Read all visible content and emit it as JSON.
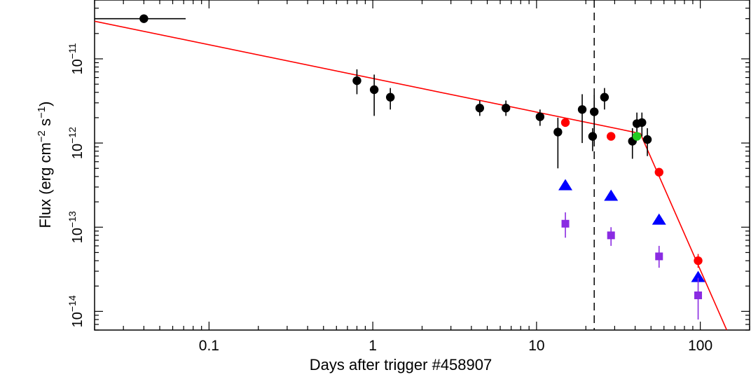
{
  "chart_data": {
    "type": "scatter",
    "xlabel": "Days after trigger #458907",
    "ylabel_parts": [
      "Flux (erg cm",
      "−2",
      " s",
      "−1",
      ")"
    ],
    "x_scale": "log",
    "y_scale": "log",
    "xlim": [
      0.02,
      200
    ],
    "ylim": [
      6e-15,
      5e-11
    ],
    "x_ticks": [
      {
        "value": 0.1,
        "label": "0.1"
      },
      {
        "value": 1,
        "label": "1"
      },
      {
        "value": 10,
        "label": "10"
      },
      {
        "value": 100,
        "label": "100"
      }
    ],
    "y_ticks": [
      {
        "value": 1e-14,
        "base": "10",
        "exp": "−14"
      },
      {
        "value": 1e-13,
        "base": "10",
        "exp": "−13"
      },
      {
        "value": 1e-12,
        "base": "10",
        "exp": "−12"
      },
      {
        "value": 1e-11,
        "base": "10",
        "exp": "−11"
      }
    ],
    "grid": false,
    "vertical_line": {
      "x": 22.5,
      "style": "dashed",
      "color": "#000000"
    },
    "model_line": {
      "color": "#ff0000",
      "x": [
        0.02,
        43,
        145
      ],
      "y": [
        2.8e-11,
        1.3e-12,
        6e-15
      ]
    },
    "series": [
      {
        "marker": "circle",
        "color": "#000000",
        "points": [
          {
            "x": 0.04,
            "y": 3e-11,
            "xerr": [
              0.02,
              0.072
            ]
          },
          {
            "x": 0.8,
            "y": 5.5e-12,
            "yerr": [
              3.8e-12,
              7.5e-12
            ]
          },
          {
            "x": 1.02,
            "y": 4.3e-12,
            "yerr": [
              2.1e-12,
              6.5e-12
            ]
          },
          {
            "x": 1.28,
            "y": 3.5e-12,
            "yerr": [
              2.5e-12,
              4.5e-12
            ]
          },
          {
            "x": 4.5,
            "y": 2.6e-12,
            "yerr": [
              2.1e-12,
              3.2e-12
            ]
          },
          {
            "x": 6.5,
            "y": 2.6e-12,
            "yerr": [
              2.1e-12,
              3.2e-12
            ]
          },
          {
            "x": 10.5,
            "y": 2.05e-12,
            "yerr": [
              1.6e-12,
              2.5e-12
            ]
          },
          {
            "x": 13.5,
            "y": 1.35e-12,
            "yerr": [
              5e-13,
              2e-12
            ]
          },
          {
            "x": 19.0,
            "y": 2.5e-12,
            "yerr": [
              1e-12,
              3.8e-12
            ]
          },
          {
            "x": 22.0,
            "y": 1.2e-12,
            "yerr": [
              8e-13,
              1.5e-12
            ]
          },
          {
            "x": 22.5,
            "y": 2.35e-12,
            "yerr": [
              1.3e-12,
              3.7e-12
            ]
          },
          {
            "x": 26.0,
            "y": 3.5e-12,
            "yerr": [
              2.5e-12,
              4.5e-12
            ]
          },
          {
            "x": 38.5,
            "y": 1.05e-12,
            "yerr": [
              6.5e-13,
              1.5e-12
            ]
          },
          {
            "x": 41.0,
            "y": 1.7e-12,
            "yerr": [
              1.2e-12,
              2.3e-12
            ]
          },
          {
            "x": 44.0,
            "y": 1.75e-12,
            "yerr": [
              1.2e-12,
              2.3e-12
            ]
          },
          {
            "x": 47.5,
            "y": 1.1e-12,
            "yerr": [
              7e-13,
              1.5e-12
            ]
          }
        ]
      },
      {
        "marker": "circle",
        "color": "#ff0000",
        "points": [
          {
            "x": 15.0,
            "y": 1.75e-12
          },
          {
            "x": 28.5,
            "y": 1.2e-12
          },
          {
            "x": 56.0,
            "y": 4.5e-13
          },
          {
            "x": 97.0,
            "y": 4e-14,
            "yerr": [
              3.3e-14,
              4.8e-14
            ]
          }
        ]
      },
      {
        "marker": "circle",
        "color": "#22cc22",
        "points": [
          {
            "x": 41.0,
            "y": 1.2e-12
          }
        ]
      },
      {
        "marker": "triangle",
        "color": "#0000ff",
        "points": [
          {
            "x": 15.0,
            "y": 3.2e-13
          },
          {
            "x": 28.5,
            "y": 2.4e-13
          },
          {
            "x": 56.0,
            "y": 1.25e-13
          },
          {
            "x": 97.0,
            "y": 2.6e-14
          }
        ]
      },
      {
        "marker": "square",
        "color": "#8a2be2",
        "points": [
          {
            "x": 15.0,
            "y": 1.1e-13,
            "yerr": [
              7.5e-14,
              1.5e-13
            ]
          },
          {
            "x": 28.5,
            "y": 8e-14,
            "yerr": [
              6e-14,
              1e-13
            ]
          },
          {
            "x": 56.0,
            "y": 4.5e-14,
            "yerr": [
              3.3e-14,
              6e-14
            ]
          },
          {
            "x": 97.0,
            "y": 1.55e-14,
            "yerr": [
              8e-15,
              2.5e-14
            ]
          }
        ]
      }
    ]
  }
}
